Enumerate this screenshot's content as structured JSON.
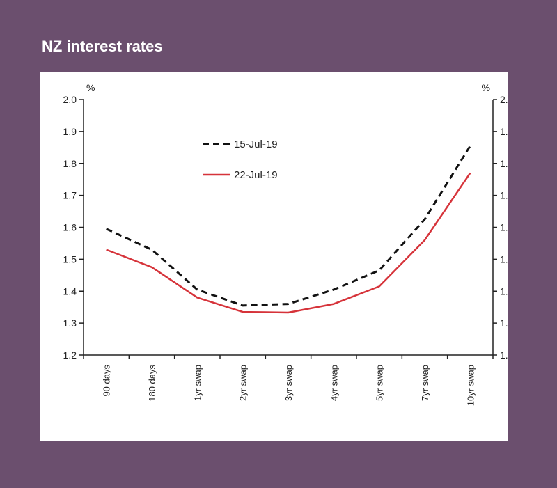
{
  "title": "NZ interest rates",
  "chart_data": {
    "type": "line",
    "title": "NZ interest rates",
    "ylabel_left": "%",
    "ylabel_right": "%",
    "ylim": [
      1.2,
      2.0
    ],
    "yticks": [
      "1.2",
      "1.3",
      "1.4",
      "1.5",
      "1.6",
      "1.7",
      "1.8",
      "1.9",
      "2.0"
    ],
    "categories": [
      "90 days",
      "180 days",
      "1yr swap",
      "2yr swap",
      "3yr swap",
      "4yr swap",
      "5yr swap",
      "7yr swap",
      "10yr swap"
    ],
    "legend_position": "top-left",
    "grid": false,
    "series": [
      {
        "name": "15-Jul-19",
        "style": "dashed",
        "color": "#111111",
        "values": [
          1.595,
          1.53,
          1.405,
          1.355,
          1.36,
          1.405,
          1.465,
          1.625,
          1.855
        ]
      },
      {
        "name": "22-Jul-19",
        "style": "solid",
        "color": "#d6333a",
        "values": [
          1.53,
          1.475,
          1.38,
          1.335,
          1.333,
          1.36,
          1.415,
          1.56,
          1.77
        ]
      }
    ]
  }
}
